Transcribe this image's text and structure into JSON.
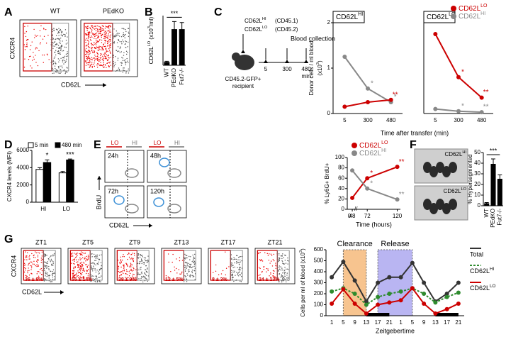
{
  "figure": {
    "letters": [
      "A",
      "B",
      "C",
      "D",
      "E",
      "F",
      "G"
    ],
    "A": {
      "left": "WT",
      "right": "PEdKO",
      "y": "CXCR4",
      "x": "CD62L"
    },
    "C_scheme": {
      "l1": [
        "CD62L",
        "HI"
      ],
      "l1b": "(CD45.1)",
      "l2": [
        "CD62L",
        "LO"
      ],
      "l2b": "(CD45.2)",
      "blood": "Blood collection",
      "times": [
        "5",
        "300",
        "480"
      ],
      "unit": "min",
      "recipient": "CD45.2-GFP+",
      "recipient2": "recipient"
    },
    "E_flow": {
      "top": [
        "LO",
        "HI",
        "LO",
        "HI"
      ],
      "times": [
        "24h",
        "48h",
        "72h",
        "120h"
      ],
      "y": "BrdU",
      "x": "CD62L"
    },
    "E_zero": "0",
    "F_img": [
      [
        "CD62L",
        "HI"
      ],
      [
        "CD62L",
        "LO"
      ]
    ],
    "G_flow": {
      "times": [
        "ZT1",
        "ZT5",
        "ZT9",
        "ZT13",
        "ZT17",
        "ZT21"
      ],
      "pct": [
        "36 ± 9%",
        "55 ± 14%",
        "38 ± 9%",
        "12 ± 5%",
        "8 ± 3%",
        "24 ± 13%"
      ],
      "y": "CXCR4",
      "x": "CD62L"
    },
    "G_regions": [
      "Clearance",
      "Release"
    ]
  },
  "chart_data": [
    {
      "type": "bar",
      "y_label": [
        "CD62L",
        "LO",
        " (x10",
        "3",
        "/ml)"
      ],
      "categories": [
        "WT",
        "PEdKO",
        "Fut7-/-"
      ],
      "values": [
        0.3,
        3.6,
        3.6
      ],
      "errors": [
        0.1,
        0.8,
        0.7
      ],
      "color": "#000000",
      "ylim": [
        0,
        5
      ],
      "annotation": "***"
    },
    {
      "type": "line",
      "title": [
        "CD62L",
        "HI"
      ],
      "y_label": [
        "Donor cells / ml blood"
      ],
      "y_label2": [
        "(x10",
        "3",
        ")"
      ],
      "x_label": "Time after transfer (min)",
      "categories": [
        "5",
        "300",
        "480"
      ],
      "ylim": [
        0,
        2
      ],
      "yticks": [
        0,
        1,
        2
      ],
      "series": [
        {
          "color": "#888888",
          "values": [
            1.25,
            0.55,
            0.25
          ],
          "sig": [
            null,
            "*",
            "*"
          ]
        },
        {
          "color": "#cc0000",
          "values": [
            0.15,
            0.25,
            0.3
          ],
          "sig": [
            null,
            null,
            "**"
          ]
        }
      ]
    },
    {
      "type": "line",
      "title": [
        "CD62L",
        "LO"
      ],
      "categories": [
        "5",
        "300",
        "480"
      ],
      "ylim": [
        0,
        2
      ],
      "series": [
        {
          "name": [
            "CD62L",
            "LO"
          ],
          "color": "#cc0000",
          "values": [
            1.75,
            0.8,
            0.35
          ],
          "sig": [
            null,
            "*",
            "**"
          ]
        },
        {
          "name": [
            "CD62L",
            "HI"
          ],
          "color": "#888888",
          "values": [
            0.1,
            0.05,
            0.03
          ],
          "sig": [
            null,
            "*",
            "**"
          ]
        }
      ]
    },
    {
      "type": "grouped_bar",
      "y_label": "CXCR4 levels (MFI)",
      "categories": [
        "HI",
        "LO"
      ],
      "ylim": [
        0,
        6000
      ],
      "yticks": [
        0,
        2000,
        4000,
        6000
      ],
      "sig": [
        "*",
        "***"
      ],
      "series": [
        {
          "name": "5 min",
          "color": "#ffffff",
          "values": [
            3800,
            3400
          ],
          "errors": [
            200,
            150
          ]
        },
        {
          "name": "480 min",
          "color": "#000000",
          "values": [
            4600,
            4900
          ],
          "errors": [
            300,
            100
          ]
        }
      ]
    },
    {
      "type": "line",
      "y_label": "% Ly6G+ BrdU+",
      "x_label": "Time (hours)",
      "x": [
        48,
        72,
        120
      ],
      "xlim": [
        40,
        125
      ],
      "xticks": [
        48,
        72,
        120
      ],
      "ylim": [
        0,
        100
      ],
      "yticks": [
        0,
        20,
        40,
        60,
        80,
        100
      ],
      "series": [
        {
          "name": [
            "CD62L",
            "LO"
          ],
          "color": "#cc0000",
          "values": [
            22,
            60,
            82
          ],
          "sig": [
            null,
            "*",
            "**"
          ]
        },
        {
          "name": [
            "CD62L",
            "HI"
          ],
          "color": "#888888",
          "values": [
            75,
            40,
            19
          ],
          "sig": [
            null,
            "*",
            "**"
          ]
        }
      ]
    },
    {
      "type": "bar",
      "y_label": "% Hypersegmented",
      "categories": [
        "WT",
        "PEdKO",
        "Fut7-/-"
      ],
      "values": [
        2,
        39,
        25
      ],
      "errors": [
        1,
        5,
        4
      ],
      "color": "#000000",
      "ylim": [
        0,
        50
      ],
      "yticks": [
        0,
        10,
        20,
        30,
        40,
        50
      ],
      "annotation": "***"
    },
    {
      "type": "line",
      "y_label": [
        "Cells per ml of blood (x10",
        "3",
        ")"
      ],
      "x_label": "Zeitgebertime",
      "categories": [
        "1",
        "5",
        "9",
        "13",
        "17",
        "21",
        "1",
        "5",
        "9",
        "13",
        "17",
        "21"
      ],
      "ylim": [
        0,
        600
      ],
      "yticks": [
        0,
        100,
        200,
        300,
        400,
        500,
        600
      ],
      "series": [
        {
          "name": "Total",
          "color": "#333333",
          "values": [
            350,
            490,
            320,
            130,
            300,
            350,
            350,
            480,
            300,
            130,
            200,
            300
          ]
        },
        {
          "name": [
            "CD62L",
            "HI"
          ],
          "color": "#2e8b2e",
          "dash": true,
          "values": [
            220,
            250,
            200,
            100,
            170,
            200,
            220,
            250,
            200,
            120,
            170,
            210
          ]
        },
        {
          "name": [
            "CD62L",
            "LO"
          ],
          "color": "#cc0000",
          "values": [
            110,
            240,
            110,
            20,
            100,
            120,
            140,
            250,
            110,
            20,
            60,
            110
          ]
        }
      ]
    }
  ]
}
